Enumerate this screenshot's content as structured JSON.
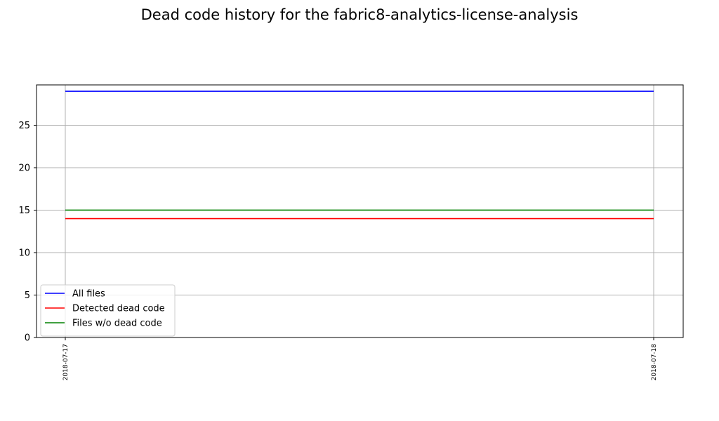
{
  "chart_data": {
    "type": "line",
    "title": "Dead code history for the fabric8-analytics-license-analysis",
    "xlabel": "",
    "ylabel": "",
    "x": [
      "2018-07-17",
      "2018-07-18"
    ],
    "series": [
      {
        "name": "All files",
        "color": "#0000ff",
        "values": [
          29,
          29
        ]
      },
      {
        "name": "Detected dead code",
        "color": "#ff0000",
        "values": [
          14,
          14
        ]
      },
      {
        "name": "Files w/o dead code",
        "color": "#008000",
        "values": [
          15,
          15
        ]
      }
    ],
    "ylim": [
      0,
      29.75
    ],
    "yticks": [
      0,
      5,
      10,
      15,
      20,
      25
    ],
    "grid": true,
    "legend_position": "lower-left",
    "grid_color": "#b0b0b0"
  }
}
